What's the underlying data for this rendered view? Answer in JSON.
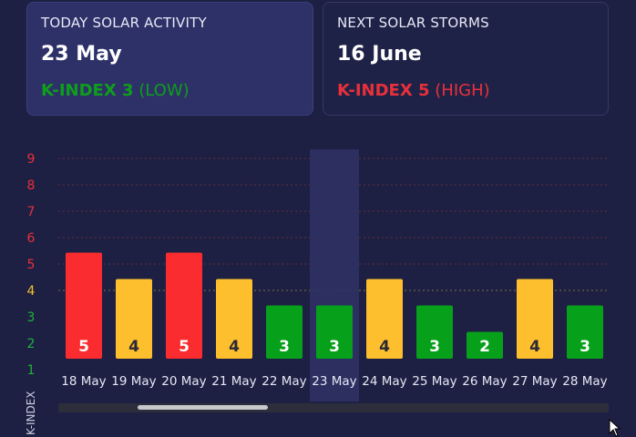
{
  "today": {
    "label": "TODAY SOLAR ACTIVITY",
    "date": "23 May",
    "kindex_label": "K-INDEX 3",
    "level": "(LOW)",
    "color": "#0e9e1c"
  },
  "next": {
    "label": "NEXT SOLAR STORMS",
    "date": "16 June",
    "kindex_label": "K-INDEX 5",
    "level": "(HIGH)",
    "color": "#e8303a"
  },
  "chart_data": {
    "type": "bar",
    "categories": [
      "18 May",
      "19 May",
      "20 May",
      "21 May",
      "22 May",
      "23 May",
      "24 May",
      "25 May",
      "26 May",
      "27 May",
      "28 May"
    ],
    "values": [
      5,
      4,
      5,
      4,
      3,
      3,
      4,
      3,
      2,
      4,
      3
    ],
    "ylabel": "K-INDEX",
    "yticks": [
      "1",
      "2",
      "3",
      "4",
      "5",
      "6",
      "7",
      "8",
      "9"
    ],
    "ylim": [
      1,
      9
    ],
    "highlighted_category": "23 May",
    "colors": {
      "low": "#06a01a",
      "moderate": "#fdbf2d",
      "high": "#fb2c2f",
      "tick_low": "#1fb33a",
      "tick_moderate": "#f5c030",
      "tick_high": "#e8303a"
    },
    "grid": true
  }
}
